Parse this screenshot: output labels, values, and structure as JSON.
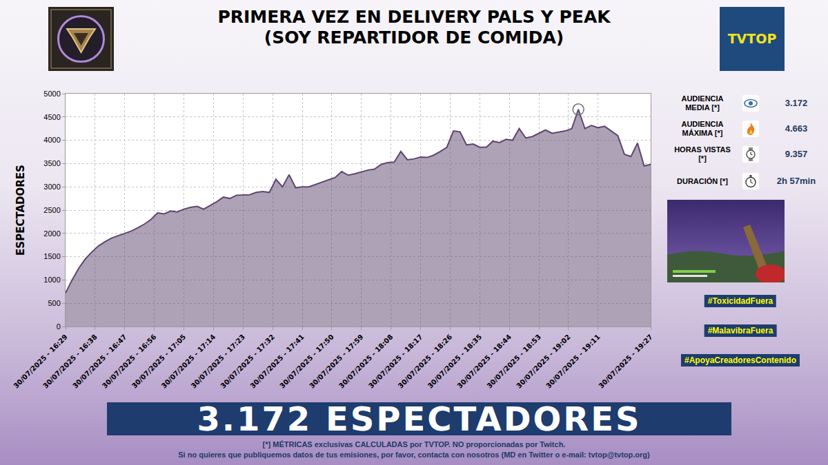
{
  "header": {
    "title": "PRIMERA VEZ EN DELIVERY PALS Y PEAK",
    "subtitle": "(SOY REPARTIDOR DE COMIDA)",
    "logo_text": "TVTOP"
  },
  "chart_data": {
    "type": "area",
    "ylabel": "ESPECTADORES",
    "color": "#5e4670",
    "grid": true,
    "x": [
      "2025-07-30 16:29",
      "2025-07-30 16:31",
      "2025-07-30 16:33",
      "2025-07-30 16:35",
      "2025-07-30 16:37",
      "2025-07-30 16:39",
      "2025-07-30 16:41",
      "2025-07-30 16:43",
      "2025-07-30 16:45",
      "2025-07-30 16:47",
      "2025-07-30 16:49",
      "2025-07-30 16:51",
      "2025-07-30 16:53",
      "2025-07-30 16:55",
      "2025-07-30 16:57",
      "2025-07-30 16:59",
      "2025-07-30 17:01",
      "2025-07-30 17:03",
      "2025-07-30 17:05",
      "2025-07-30 17:07",
      "2025-07-30 17:09",
      "2025-07-30 17:11",
      "2025-07-30 17:13",
      "2025-07-30 17:15",
      "2025-07-30 17:17",
      "2025-07-30 17:19",
      "2025-07-30 17:21",
      "2025-07-30 17:23",
      "2025-07-30 17:25",
      "2025-07-30 17:27",
      "2025-07-30 17:29",
      "2025-07-30 17:31",
      "2025-07-30 17:33",
      "2025-07-30 17:35",
      "2025-07-30 17:37",
      "2025-07-30 17:39",
      "2025-07-30 17:41",
      "2025-07-30 17:43",
      "2025-07-30 17:45",
      "2025-07-30 17:47",
      "2025-07-30 17:49",
      "2025-07-30 17:51",
      "2025-07-30 17:53",
      "2025-07-30 17:55",
      "2025-07-30 17:57",
      "2025-07-30 17:59",
      "2025-07-30 18:01",
      "2025-07-30 18:03",
      "2025-07-30 18:05",
      "2025-07-30 18:07",
      "2025-07-30 18:09",
      "2025-07-30 18:11",
      "2025-07-30 18:13",
      "2025-07-30 18:15",
      "2025-07-30 18:17",
      "2025-07-30 18:19",
      "2025-07-30 18:21",
      "2025-07-30 18:23",
      "2025-07-30 18:25",
      "2025-07-30 18:27",
      "2025-07-30 18:29",
      "2025-07-30 18:31",
      "2025-07-30 18:33",
      "2025-07-30 18:35",
      "2025-07-30 18:37",
      "2025-07-30 18:39",
      "2025-07-30 18:41",
      "2025-07-30 18:43",
      "2025-07-30 18:45",
      "2025-07-30 18:47",
      "2025-07-30 18:49",
      "2025-07-30 18:51",
      "2025-07-30 18:53",
      "2025-07-30 18:55",
      "2025-07-30 18:57",
      "2025-07-30 18:59",
      "2025-07-30 19:01",
      "2025-07-30 19:03",
      "2025-07-30 19:05",
      "2025-07-30 19:07",
      "2025-07-30 19:09",
      "2025-07-30 19:11",
      "2025-07-30 19:13",
      "2025-07-30 19:15",
      "2025-07-30 19:17",
      "2025-07-30 19:19",
      "2025-07-30 19:21",
      "2025-07-30 19:23",
      "2025-07-30 19:25",
      "2025-07-30 19:27"
    ],
    "values": [
      720,
      1000,
      1250,
      1450,
      1600,
      1730,
      1820,
      1900,
      1950,
      2000,
      2050,
      2120,
      2200,
      2300,
      2440,
      2420,
      2480,
      2460,
      2520,
      2560,
      2580,
      2520,
      2600,
      2680,
      2780,
      2750,
      2820,
      2820,
      2830,
      2880,
      2900,
      2880,
      3160,
      3000,
      3260,
      2980,
      3000,
      3000,
      3050,
      3100,
      3150,
      3200,
      3330,
      3250,
      3280,
      3320,
      3360,
      3380,
      3480,
      3520,
      3530,
      3760,
      3580,
      3600,
      3640,
      3630,
      3680,
      3760,
      3850,
      4200,
      4180,
      3900,
      3920,
      3850,
      3850,
      3980,
      3950,
      4020,
      4000,
      4250,
      4050,
      4080,
      4150,
      4220,
      4150,
      4180,
      4200,
      4250,
      4663,
      4250,
      4320,
      4270,
      4300,
      4200,
      4100,
      3700,
      3650,
      3940,
      3450,
      3480
    ],
    "xlim": [
      "2025-07-30 16:29",
      "2025-07-30 19:27"
    ],
    "xticks": [
      {
        "value": "2025-07-30 16:29",
        "label": "30/07/2025 - 16:29"
      },
      {
        "value": "2025-07-30 16:38",
        "label": "30/07/2025 - 16:38"
      },
      {
        "value": "2025-07-30 16:47",
        "label": "30/07/2025 - 16:47"
      },
      {
        "value": "2025-07-30 16:56",
        "label": "30/07/2025 - 16:56"
      },
      {
        "value": "2025-07-30 17:05",
        "label": "30/07/2025 - 17:05"
      },
      {
        "value": "2025-07-30 17:14",
        "label": "30/07/2025 - 17:14"
      },
      {
        "value": "2025-07-30 17:23",
        "label": "30/07/2025 - 17:23"
      },
      {
        "value": "2025-07-30 17:32",
        "label": "30/07/2025 - 17:32"
      },
      {
        "value": "2025-07-30 17:41",
        "label": "30/07/2025 - 17:41"
      },
      {
        "value": "2025-07-30 17:50",
        "label": "30/07/2025 - 17:50"
      },
      {
        "value": "2025-07-30 17:59",
        "label": "30/07/2025 - 17:59"
      },
      {
        "value": "2025-07-30 18:08",
        "label": "30/07/2025 - 18:08"
      },
      {
        "value": "2025-07-30 18:17",
        "label": "30/07/2025 - 18:17"
      },
      {
        "value": "2025-07-30 18:26",
        "label": "30/07/2025 - 18:26"
      },
      {
        "value": "2025-07-30 18:35",
        "label": "30/07/2025 - 18:35"
      },
      {
        "value": "2025-07-30 18:44",
        "label": "30/07/2025 - 18:44"
      },
      {
        "value": "2025-07-30 18:53",
        "label": "30/07/2025 - 18:53"
      },
      {
        "value": "2025-07-30 19:02",
        "label": "30/07/2025 - 19:02"
      },
      {
        "value": "2025-07-30 19:11",
        "label": "30/07/2025 - 19:11"
      },
      {
        "value": "2025-07-30 19:27",
        "label": "30/07/2025 - 19:27"
      }
    ],
    "ylim": [
      0,
      5000
    ],
    "yticks": [
      0,
      500,
      1000,
      1500,
      2000,
      2500,
      3000,
      3500,
      4000,
      4500,
      5000
    ]
  },
  "stats": [
    {
      "label": "AUDIENCIA MEDIA [*]",
      "value": "3.172"
    },
    {
      "label": "AUDIENCIA MÁXIMA [*]",
      "value": "4.663"
    },
    {
      "label": "HORAS VISTAS [*]",
      "value": "9.357"
    },
    {
      "label": "DURACIÓN [*]",
      "value": "2h 57min"
    }
  ],
  "hashtags": [
    "#ToxicidadFuera",
    "#MalavibraFuera",
    "#ApoyaCreadoresContenido"
  ],
  "banner": "3.172 ESPECTADORES",
  "footer": [
    "[*] MÉTRICAS exclusivas CALCULADAS por TVTOP. NO proporcionadas por Twitch.",
    "Si no quieres que publiquemos datos de tus emisiones, por favor, contacta con nosotros (MD en Twitter o e-mail: tvtop@tvtop.org)"
  ]
}
